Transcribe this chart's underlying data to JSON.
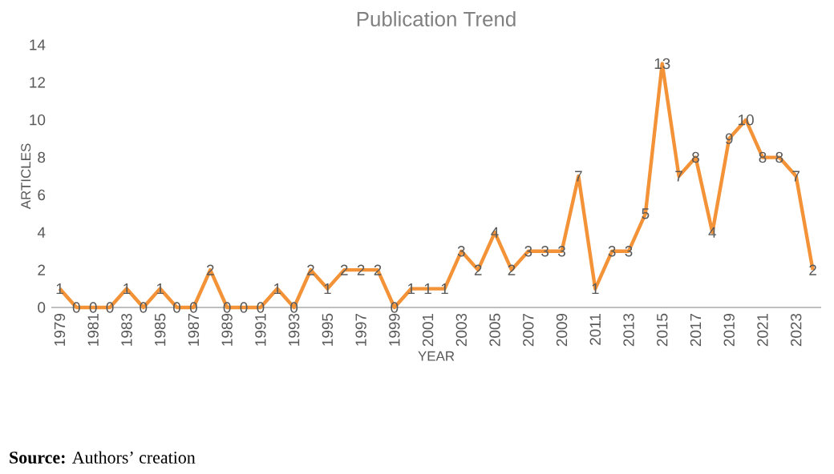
{
  "chart_data": {
    "type": "line",
    "title": "Publication Trend",
    "xlabel": "YEAR",
    "ylabel": "ARTICLES",
    "categories": [
      "1979",
      null,
      "1981",
      null,
      "1983",
      null,
      "1985",
      null,
      "1987",
      null,
      "1989",
      null,
      "1991",
      null,
      "1993",
      null,
      "1995",
      null,
      "1997",
      null,
      "1999",
      null,
      "2001",
      null,
      "2003",
      null,
      "2005",
      null,
      "2007",
      null,
      "2009",
      null,
      "2011",
      null,
      "2013",
      null,
      "2015",
      null,
      "2017",
      null,
      "2019",
      null,
      "2021",
      null,
      "2023",
      null
    ],
    "values": [
      1,
      0,
      0,
      0,
      1,
      0,
      1,
      0,
      0,
      2,
      0,
      0,
      0,
      1,
      0,
      2,
      1,
      2,
      2,
      2,
      0,
      1,
      1,
      1,
      3,
      2,
      4,
      2,
      3,
      3,
      3,
      7,
      1,
      3,
      3,
      5,
      13,
      7,
      8,
      4,
      9,
      10,
      8,
      8,
      7,
      2
    ],
    "value_labels": [
      "1",
      "0",
      "0",
      "0",
      "1",
      "0",
      "1",
      "0",
      "0",
      "2",
      "0",
      "0",
      "0",
      "1",
      "0",
      "2",
      "1",
      "2",
      "2",
      "2",
      "0",
      "1",
      "1",
      "1",
      "3",
      "2",
      "4",
      "2",
      "3",
      "3",
      "3",
      "7",
      "1",
      "3",
      "3",
      "5",
      "13",
      "7",
      "8",
      "4",
      "9",
      "10",
      "8",
      "8",
      "7",
      "2"
    ],
    "color": "#f39237",
    "ylim": [
      0,
      14
    ],
    "yticks": [
      0,
      2,
      4,
      6,
      8,
      10,
      12,
      14
    ],
    "annotations": [
      "**Source:** Authors’ creation"
    ]
  }
}
